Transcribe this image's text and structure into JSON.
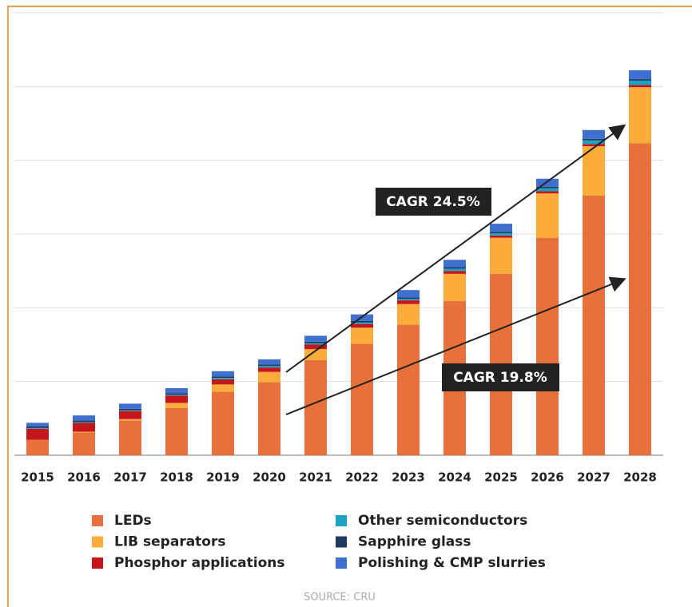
{
  "chart_data": {
    "type": "stacked_bar",
    "categories": [
      "2015",
      "2016",
      "2017",
      "2018",
      "2019",
      "2020",
      "2021",
      "2022",
      "2023",
      "2024",
      "2025",
      "2026",
      "2027",
      "2028"
    ],
    "series": [
      {
        "name": "LEDs",
        "color": "#e8703a",
        "values": [
          0.21,
          0.31,
          0.47,
          0.64,
          0.86,
          0.99,
          1.29,
          1.51,
          1.77,
          2.09,
          2.46,
          2.95,
          3.52,
          4.23
        ]
      },
      {
        "name": "LIB separators",
        "color": "#fbac3a",
        "values": [
          0.0,
          0.01,
          0.02,
          0.07,
          0.1,
          0.14,
          0.15,
          0.22,
          0.28,
          0.37,
          0.49,
          0.6,
          0.67,
          0.76
        ]
      },
      {
        "name": "Phosphor applications",
        "color": "#c4161c",
        "values": [
          0.15,
          0.12,
          0.11,
          0.1,
          0.07,
          0.06,
          0.06,
          0.05,
          0.05,
          0.04,
          0.03,
          0.03,
          0.03,
          0.03
        ]
      },
      {
        "name": "Other semiconductors",
        "color": "#1aa3c4",
        "values": [
          0.01,
          0.01,
          0.01,
          0.01,
          0.02,
          0.02,
          0.02,
          0.02,
          0.02,
          0.03,
          0.03,
          0.04,
          0.05,
          0.06
        ]
      },
      {
        "name": "Sapphire glass",
        "color": "#1f3a5f",
        "values": [
          0.02,
          0.02,
          0.02,
          0.02,
          0.02,
          0.02,
          0.02,
          0.02,
          0.02,
          0.02,
          0.02,
          0.02,
          0.02,
          0.02
        ]
      },
      {
        "name": "Polishing & CMP slurries",
        "color": "#3f6fcf",
        "values": [
          0.05,
          0.07,
          0.07,
          0.07,
          0.07,
          0.07,
          0.08,
          0.09,
          0.1,
          0.1,
          0.11,
          0.11,
          0.12,
          0.12
        ]
      }
    ],
    "ylim": [
      0,
      6
    ],
    "yticks": [
      0,
      1,
      2,
      3,
      4,
      5,
      6
    ],
    "grid": true,
    "annotations": [
      {
        "text": "CAGR 24.5%"
      },
      {
        "text": "CAGR 19.8%"
      }
    ],
    "source": "SOURCE: CRU"
  }
}
